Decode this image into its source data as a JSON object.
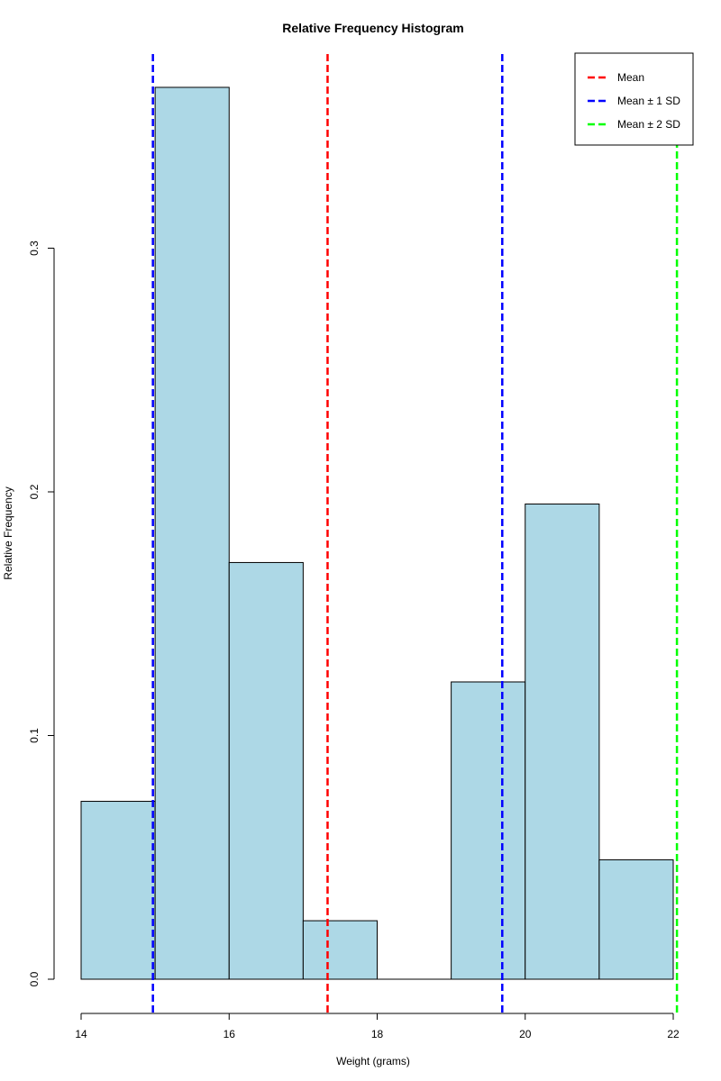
{
  "chart_data": {
    "type": "bar",
    "title": "Relative Frequency Histogram",
    "xlabel": "Weight (grams)",
    "ylabel": "Relative Frequency",
    "xlim": [
      14,
      22
    ],
    "ylim": [
      0,
      0.37
    ],
    "bins": [
      {
        "start": 14,
        "end": 15,
        "value": 0.073
      },
      {
        "start": 15,
        "end": 16,
        "value": 0.366
      },
      {
        "start": 16,
        "end": 17,
        "value": 0.171
      },
      {
        "start": 17,
        "end": 18,
        "value": 0.024
      },
      {
        "start": 18,
        "end": 19,
        "value": 0.0
      },
      {
        "start": 19,
        "end": 20,
        "value": 0.122
      },
      {
        "start": 20,
        "end": 21,
        "value": 0.195
      },
      {
        "start": 21,
        "end": 22,
        "value": 0.049
      }
    ],
    "x_ticks": [
      14,
      16,
      18,
      20,
      22
    ],
    "x_tick_labels": [
      "14",
      "16",
      "18",
      "20",
      "22"
    ],
    "y_ticks": [
      0.0,
      0.1,
      0.2,
      0.3
    ],
    "y_tick_labels": [
      "0.0",
      "0.1",
      "0.2",
      "0.3"
    ],
    "bar_fill": "#add8e6",
    "bar_stroke": "#000000",
    "grid": false,
    "reference_lines": [
      {
        "label": "Mean",
        "x": 17.33,
        "color": "#ff0000"
      },
      {
        "label": "Mean ± 1 SD",
        "x": 14.97,
        "color": "#0000ff"
      },
      {
        "label": "Mean ± 1 SD",
        "x": 19.69,
        "color": "#0000ff"
      },
      {
        "label": "Mean ± 2 SD",
        "x": 22.05,
        "color": "#00ff00"
      }
    ],
    "legend": {
      "position": "top-right",
      "entries": [
        {
          "label": "Mean",
          "color": "#ff0000"
        },
        {
          "label": "Mean ± 1 SD",
          "color": "#0000ff"
        },
        {
          "label": "Mean ± 2 SD",
          "color": "#00ff00"
        }
      ]
    }
  }
}
